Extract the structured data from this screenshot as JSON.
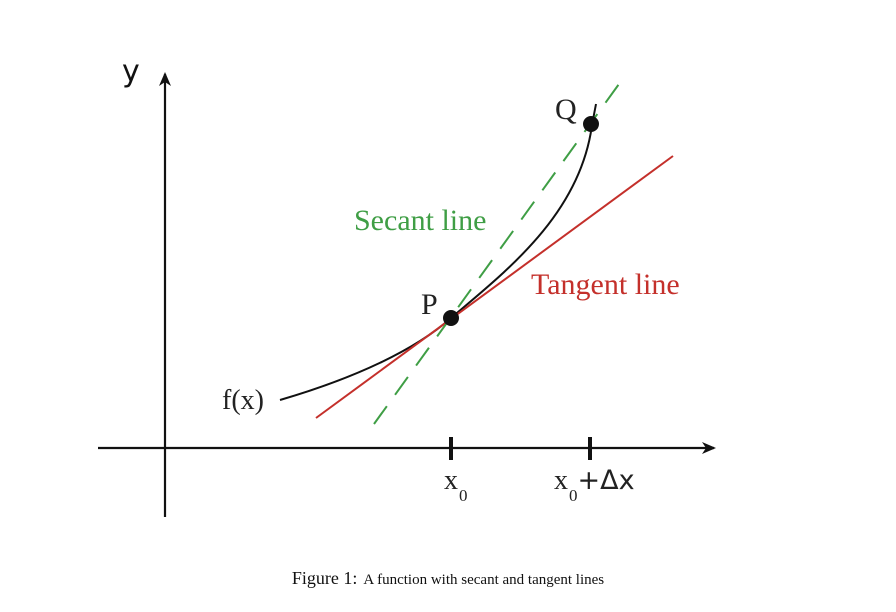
{
  "axes": {
    "y_label": "y",
    "x_label": ""
  },
  "curve": {
    "label": "f(x)"
  },
  "points": {
    "p": "P",
    "q": "Q"
  },
  "lines": {
    "secant": {
      "label": "Secant line",
      "color": "#3f9e45"
    },
    "tangent": {
      "label": "Tangent line",
      "color": "#c4302b"
    }
  },
  "ticks": {
    "x0": {
      "base": "x",
      "sub": "0"
    },
    "x0_dx": {
      "base": "x",
      "sub": "0",
      "suffix": "+Δx"
    }
  },
  "caption": {
    "label": "Figure 1:",
    "text": "A function with secant and tangent lines"
  }
}
